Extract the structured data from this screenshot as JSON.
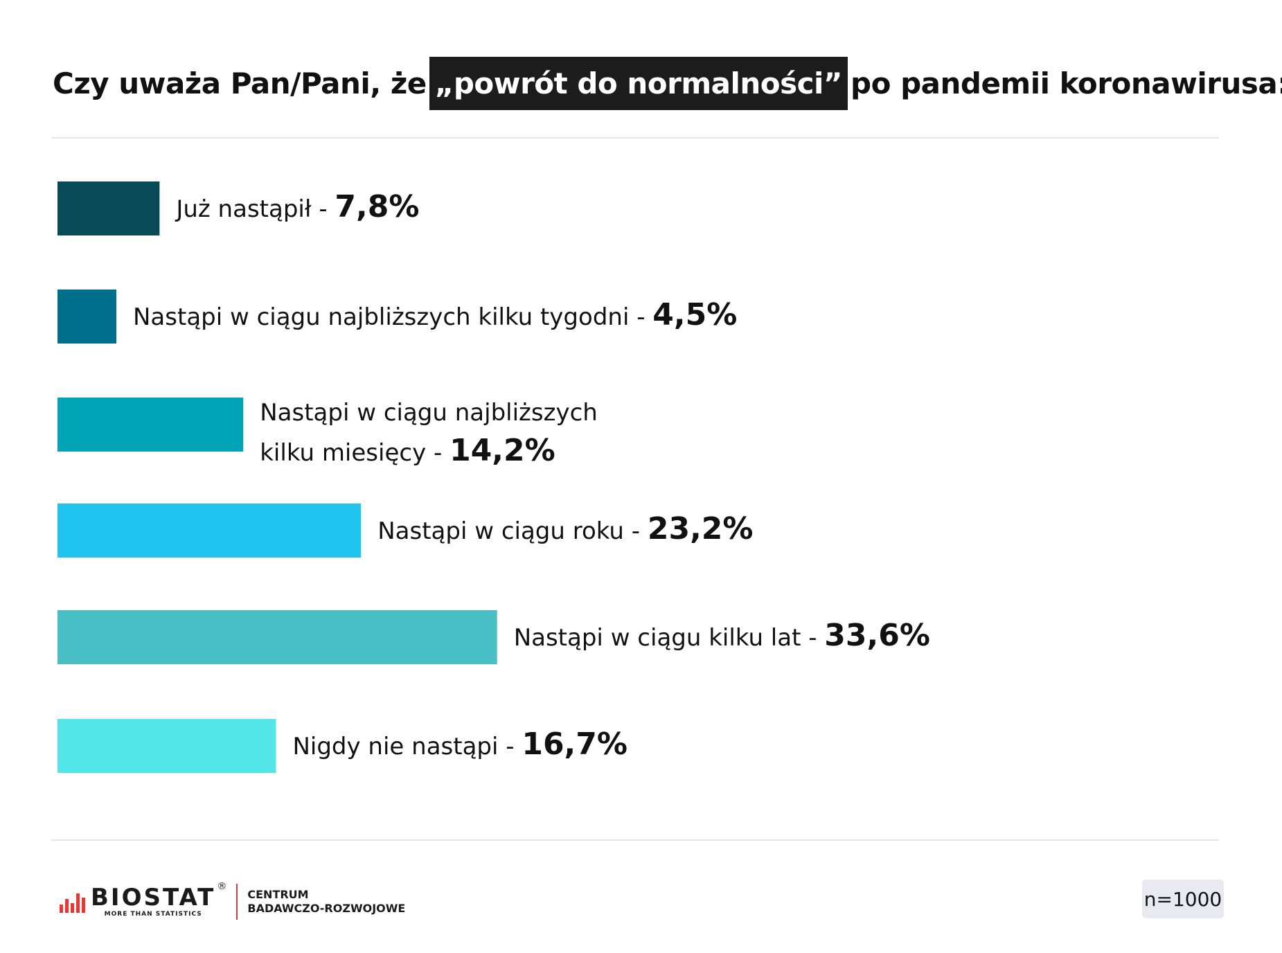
{
  "title": {
    "before": "Czy uważa Pan/Pani, że",
    "highlight": "„powrót do normalności”",
    "after": "po pandemii koronawirusa:"
  },
  "chart_data": {
    "type": "bar",
    "orientation": "horizontal",
    "categories": [
      "Już nastąpił",
      "Nastąpi w ciągu najbliższych kilku tygodni",
      "Nastąpi w ciągu najbliższych kilku miesięcy",
      "Nastąpi w ciągu roku",
      "Nastąpi w ciągu kilku lat",
      "Nigdy nie nastąpi"
    ],
    "values": [
      7.8,
      4.5,
      14.2,
      23.2,
      33.6,
      16.7
    ],
    "value_labels": [
      "7,8%",
      "4,5%",
      "14,2%",
      "23,2%",
      "33,6%",
      "16,7%"
    ],
    "label_lines": [
      [
        "Już nastąpił"
      ],
      [
        "Nastąpi w ciągu najbliższych kilku tygodni"
      ],
      [
        "Nastąpi w ciągu najbliższych",
        "kilku miesięcy"
      ],
      [
        "Nastąpi w ciągu roku"
      ],
      [
        "Nastąpi w ciągu kilku lat"
      ],
      [
        "Nigdy nie nastąpi"
      ]
    ],
    "colors": [
      "#084a57",
      "#006f8c",
      "#00a2b5",
      "#21c3ef",
      "#47bfc5",
      "#52e6e8"
    ],
    "unit": "%",
    "grid": false
  },
  "footer": {
    "logo_name": "BIOSTAT",
    "logo_tagline": "MORE THAN STATISTICS",
    "logo_sub_line1": "CENTRUM",
    "logo_sub_line2": "BADAWCZO-ROZWOJOWE",
    "sample_size": "n=1000"
  }
}
